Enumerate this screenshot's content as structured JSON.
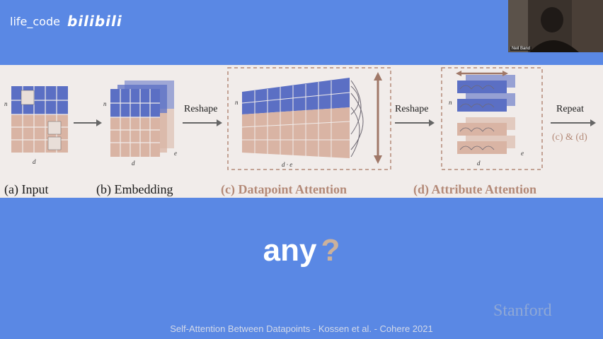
{
  "watermark": {
    "user": "life_code",
    "brand": "bilibili"
  },
  "webcam": {
    "name": "Neil Band"
  },
  "figure": {
    "panels": [
      {
        "caption": "(a) Input"
      },
      {
        "caption": "(b) Embedding"
      },
      {
        "caption": "(c) Datapoint Attention"
      },
      {
        "caption": "(d) Attribute Attention"
      }
    ],
    "arrows": {
      "reshape1": "Reshape",
      "reshape2": "Reshape",
      "repeat": "Repeat",
      "repeat_sub": "(c) & (d)"
    },
    "axis_labels": {
      "n": "n",
      "d": "d",
      "e": "e",
      "de": "d · e"
    },
    "colors": {
      "blue_rows": "#5b6fc4",
      "tan_rows": "#d9b4a4",
      "accent_caption": "#b48a78"
    }
  },
  "main": {
    "word": "any",
    "mark": "?"
  },
  "footer": {
    "text": "Self-Attention Between Datapoints  -  Kossen et al.  -  Cohere 2021"
  },
  "logo": {
    "text": "Stanford"
  }
}
